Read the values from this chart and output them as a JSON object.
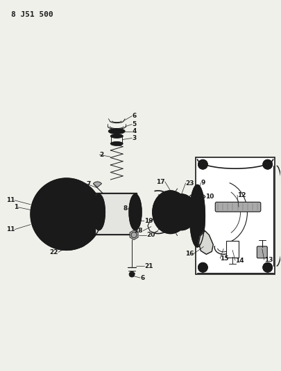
{
  "title": "8 J51 500",
  "bg_color": "#f0f0eb",
  "line_color": "#1a1a1a",
  "label_fs": 6.5,
  "title_fs": 8.0
}
